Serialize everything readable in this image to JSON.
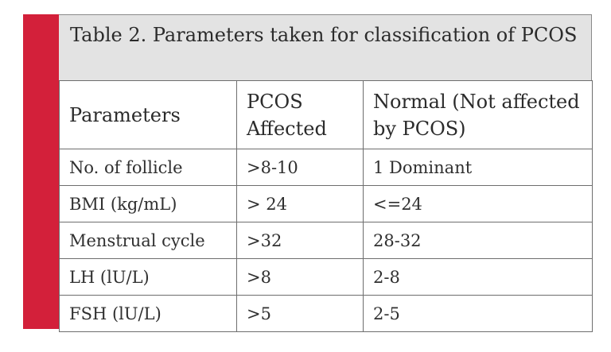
{
  "caption": "Table 2. Parameters taken for classification of PCOS",
  "headers": [
    "Parameters",
    "PCOS Affected",
    "Normal (Not affected by PCOS)"
  ],
  "rows": [
    [
      "No. of follicle",
      ">8-10",
      "1 Dominant"
    ],
    [
      "BMI (kg/mL)",
      "> 24",
      "<=24"
    ],
    [
      "Menstrual cycle",
      ">32",
      "28-32"
    ],
    [
      "LH (lU/L)",
      ">8",
      "2-8"
    ],
    [
      "FSH (lU/L)",
      ">5",
      "2-5"
    ]
  ],
  "colors": {
    "accent_bar": "#d3203a",
    "caption_bg": "#e3e3e3"
  }
}
